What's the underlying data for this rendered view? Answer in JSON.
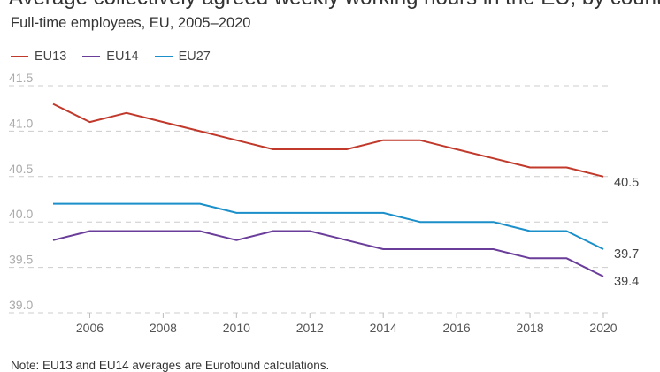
{
  "header": {
    "title_partial": "Average collectively agreed weekly working hours in the EU, by country group",
    "subtitle": "Full-time employees, EU, 2005–2020"
  },
  "footer": {
    "note": "Note: EU13 and EU14 averages are Eurofound calculations."
  },
  "colors": {
    "EU13": "#c0392b",
    "EU14": "#6a3d9a",
    "EU27": "#1a8fc9"
  },
  "chart_data": {
    "type": "line",
    "title": "",
    "subtitle": "Full-time employees, EU, 2005–2020",
    "xlabel": "",
    "ylabel": "",
    "x": [
      2005,
      2006,
      2007,
      2008,
      2009,
      2010,
      2011,
      2012,
      2013,
      2014,
      2015,
      2016,
      2017,
      2018,
      2019,
      2020
    ],
    "xlim": [
      2005,
      2020
    ],
    "xticks": [
      2006,
      2008,
      2010,
      2012,
      2014,
      2016,
      2018,
      2020
    ],
    "ylim": [
      39.0,
      41.5
    ],
    "yticks": [
      "39.0",
      "39.5",
      "40.0",
      "40.5",
      "41.0",
      "41.5"
    ],
    "grid": "horizontal dashed",
    "legend": "top-left",
    "series": [
      {
        "name": "EU13",
        "values": [
          41.3,
          41.1,
          41.2,
          41.1,
          41.0,
          40.9,
          40.8,
          40.8,
          40.8,
          40.9,
          40.9,
          40.8,
          40.7,
          40.6,
          40.6,
          40.5
        ],
        "end_label": "40.5"
      },
      {
        "name": "EU14",
        "values": [
          39.8,
          39.9,
          39.9,
          39.9,
          39.9,
          39.8,
          39.9,
          39.9,
          39.8,
          39.7,
          39.7,
          39.7,
          39.7,
          39.6,
          39.6,
          39.4
        ],
        "end_label": "39.4"
      },
      {
        "name": "EU27",
        "values": [
          40.2,
          40.2,
          40.2,
          40.2,
          40.2,
          40.1,
          40.1,
          40.1,
          40.1,
          40.1,
          40.0,
          40.0,
          40.0,
          39.9,
          39.9,
          39.7
        ],
        "end_label": "39.7"
      }
    ]
  }
}
